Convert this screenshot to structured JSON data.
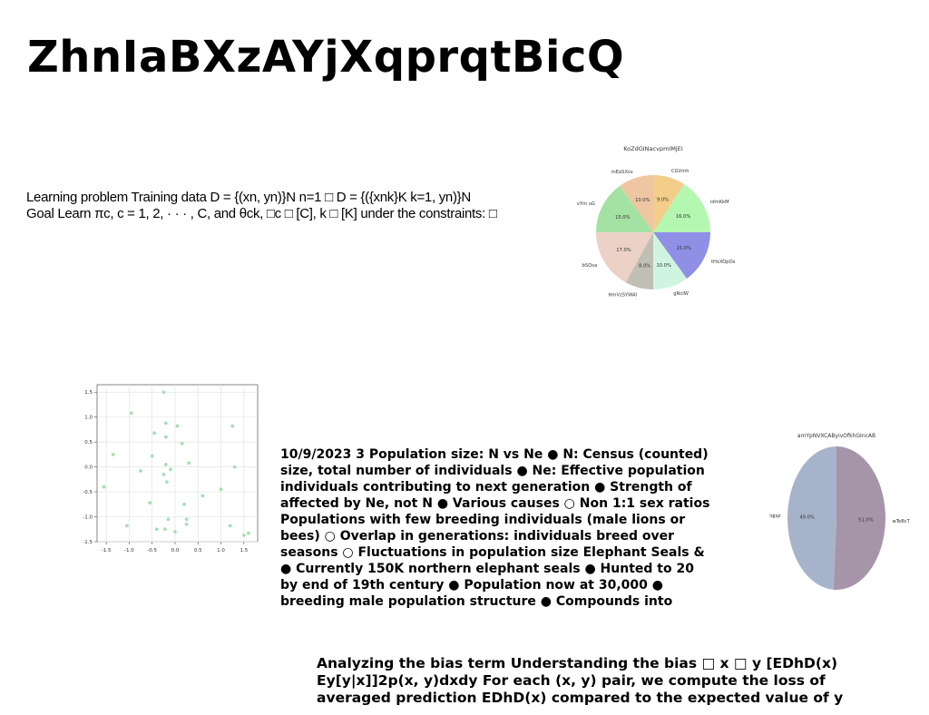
{
  "page": {
    "title": "ZhnIaBXzAYjXqprqtBicQ",
    "para1_lines": [
      "Learning problem Training data D = {(xn, yn)}N n=1 □ D = {({xnk}K k=1, yn)}N",
      "Goal Learn πc, c = 1, 2, · · · , C, and θck, □c □ [C], k □ [K] under the constraints: □"
    ],
    "para2_lines": [
      "10/9/2023 3 Population size: N vs Ne ● N: Census (counted)",
      "size, total number of individuals ● Ne: Effective population",
      "individuals contributing to next generation ● Strength of",
      "affected by Ne, not N ● Various causes ○ Non 1:1 sex ratios",
      "Populations with few breeding individuals (male lions or",
      "bees) ○ Overlap in generations: individuals breed over",
      "seasons ○ Fluctuations in population size Elephant Seals &",
      "● Currently 150K northern elephant seals ● Hunted to 20",
      "by end of 19th century ● Population now at 30,000 ●",
      "breeding male population structure ● Compounds into"
    ],
    "para3_lines": [
      "Analyzing the bias term Understanding the bias □ x □ y [EDhD(x)",
      "Ey[y|x]]2p(x, y)dxdy For each (x, y) pair, we compute the loss of",
      "averaged prediction EDhD(x) compared to the expected value of y"
    ]
  },
  "chart_data": [
    {
      "type": "pie",
      "title": "KoZdGINacvpmIMjEI",
      "labels": [
        "CGVmh",
        "idmKkM",
        "tHxXOpOs",
        "gNcIW",
        "HmVzSYWAI",
        "bSOsa",
        "vYm uG",
        "mEaSXsx"
      ],
      "values": [
        9.0,
        16.0,
        15.0,
        10.0,
        8.0,
        17.0,
        15.0,
        10.0
      ],
      "value_labels": [
        "9.0%",
        "16.0%",
        "15.0%",
        "10.0%",
        "8.0%",
        "17.0%",
        "15.0%",
        "10.0%"
      ],
      "colors": [
        "#f3cd8a",
        "#b4f7b0",
        "#8f8fe6",
        "#cff5e0",
        "#bfbfb4",
        "#ecd2c6",
        "#a3e2a2",
        "#eec6a2"
      ]
    },
    {
      "type": "scatter",
      "color": "#a6dfb0",
      "x": [
        -1.55,
        -1.35,
        -1.05,
        -0.95,
        -0.75,
        -0.55,
        -0.5,
        -0.45,
        -0.4,
        -0.25,
        -0.2,
        -0.2,
        -0.18,
        -0.2,
        -0.15,
        -0.22,
        -0.1,
        0.0,
        0.05,
        0.15,
        0.2,
        0.25,
        0.3,
        0.25,
        0.6,
        1.0,
        1.2,
        1.25,
        1.3,
        1.5,
        1.6,
        -0.25
      ],
      "y": [
        -0.4,
        0.25,
        -1.18,
        1.08,
        -0.08,
        -0.72,
        0.22,
        0.68,
        -1.25,
        -0.15,
        0.88,
        0.6,
        -0.3,
        0.05,
        -1.05,
        -1.25,
        -0.05,
        -1.3,
        0.82,
        0.47,
        -0.75,
        -1.05,
        0.08,
        -1.15,
        -0.58,
        -0.45,
        -1.18,
        0.82,
        0.0,
        -1.37,
        -1.33,
        1.5
      ],
      "xticks": [
        "-1.5",
        "-1.0",
        "-0.5",
        "0.0",
        "0.5",
        "1.0",
        "1.5"
      ],
      "yticks": [
        "1.5",
        "1.0",
        "0.5",
        "0.0",
        "-0.5",
        "-1.0",
        "-1.5"
      ],
      "xlim": [
        -1.7,
        1.8
      ],
      "ylim": [
        -1.5,
        1.65
      ],
      "grid": true
    },
    {
      "type": "pie",
      "title": "amYpNVXCAByivOfkhGIncAB",
      "labels": [
        "wTeBcT",
        "lqjqz"
      ],
      "values": [
        51.0,
        49.0
      ],
      "value_labels": [
        "51.0%",
        "49.0%"
      ],
      "colors": [
        "#a695a8",
        "#a7b3cb"
      ]
    }
  ]
}
